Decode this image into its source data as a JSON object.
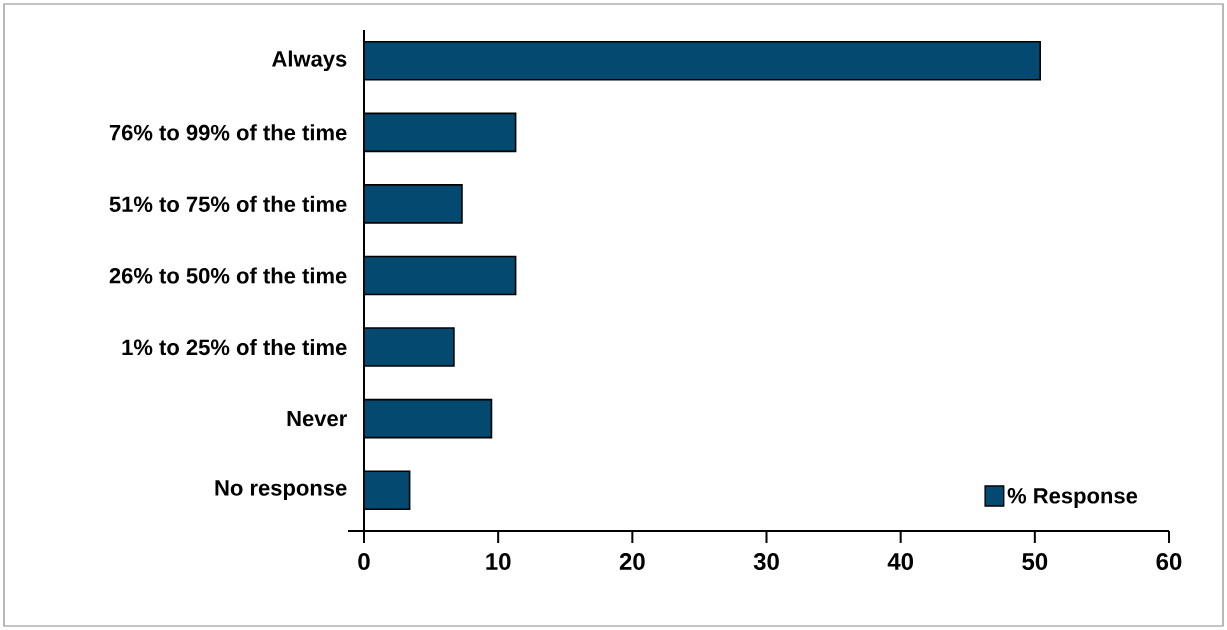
{
  "chart_data": {
    "type": "bar",
    "orientation": "horizontal",
    "categories": [
      "Always",
      "76% to 99% of the time",
      "51% to 75% of the time",
      "26% to 50% of the time",
      "1% to 25% of the time",
      "Never",
      "No response"
    ],
    "series": [
      {
        "name": "% Response",
        "color": "#04496f",
        "values": [
          50.4,
          11.3,
          7.3,
          11.3,
          6.7,
          9.5,
          3.4
        ]
      }
    ],
    "xlim": [
      0,
      60
    ],
    "xticks": [
      0,
      10,
      20,
      30,
      40,
      50,
      60
    ],
    "grid": false,
    "legend": "bottom right"
  }
}
